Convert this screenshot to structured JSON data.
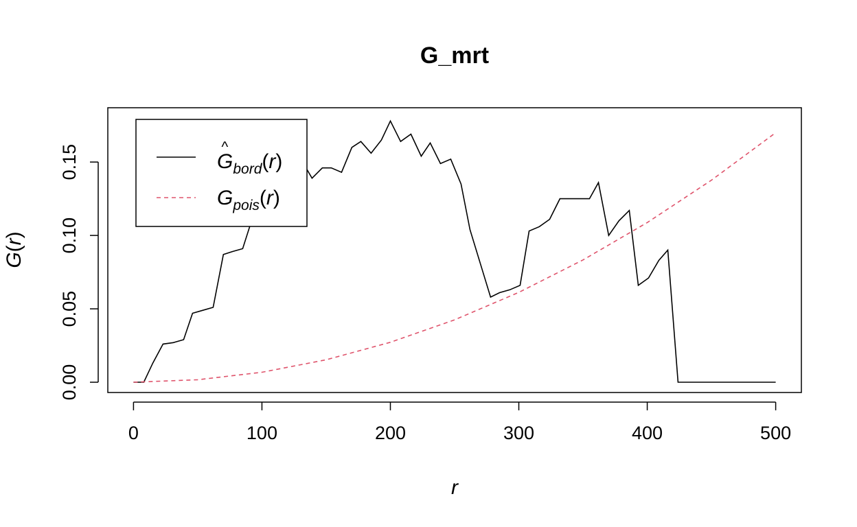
{
  "chart_data": {
    "type": "line",
    "title": "G_mrt",
    "xlabel": "r",
    "ylabel": {
      "main": "G",
      "arg": "r"
    },
    "xlim": [
      -20,
      520
    ],
    "ylim": [
      -0.007,
      0.187
    ],
    "x_ticks": [
      0,
      100,
      200,
      300,
      400,
      500
    ],
    "x_tick_labels": [
      "0",
      "100",
      "200",
      "300",
      "400",
      "500"
    ],
    "y_ticks": [
      0.0,
      0.05,
      0.1,
      0.15
    ],
    "y_tick_labels": [
      "0.00",
      "0.05",
      "0.10",
      "0.15"
    ],
    "grid": false,
    "legend_position": "top-left",
    "series": [
      {
        "name": "bord",
        "legend": {
          "main": "G",
          "hat": "^",
          "sub": "bord",
          "arg": "r"
        },
        "color": "#000000",
        "dash": "solid",
        "x": [
          0,
          8,
          15,
          23,
          31,
          39,
          46,
          54,
          62,
          70,
          77,
          85,
          93,
          100,
          108,
          116,
          123,
          131,
          139,
          147,
          154,
          162,
          170,
          177,
          185,
          193,
          200,
          208,
          216,
          224,
          231,
          239,
          247,
          255,
          262,
          270,
          278,
          285,
          293,
          301,
          308,
          316,
          324,
          332,
          339,
          347,
          355,
          362,
          370,
          378,
          386,
          393,
          401,
          409,
          416,
          424,
          432,
          500
        ],
        "y": [
          0,
          0,
          0.013,
          0.026,
          0.027,
          0.029,
          0.047,
          0.049,
          0.051,
          0.087,
          0.089,
          0.091,
          0.113,
          0.113,
          0.117,
          0.125,
          0.109,
          0.151,
          0.139,
          0.146,
          0.146,
          0.143,
          0.16,
          0.164,
          0.156,
          0.165,
          0.178,
          0.164,
          0.169,
          0.154,
          0.163,
          0.149,
          0.152,
          0.135,
          0.104,
          0.081,
          0.058,
          0.061,
          0.063,
          0.066,
          0.103,
          0.106,
          0.111,
          0.125,
          0.125,
          0.125,
          0.125,
          0.136,
          0.1,
          0.11,
          0.117,
          0.066,
          0.071,
          0.083,
          0.09,
          0,
          0,
          0
        ]
      },
      {
        "name": "pois",
        "legend": {
          "main": "G",
          "sub": "pois",
          "arg": "r"
        },
        "color": "#DF536B",
        "dash": "dashed",
        "x": [
          0,
          50,
          100,
          150,
          200,
          250,
          300,
          350,
          400,
          450,
          500
        ],
        "y": [
          0,
          0.0017,
          0.0068,
          0.0153,
          0.0272,
          0.0425,
          0.0612,
          0.0833,
          0.1088,
          0.1377,
          0.17
        ]
      }
    ]
  }
}
